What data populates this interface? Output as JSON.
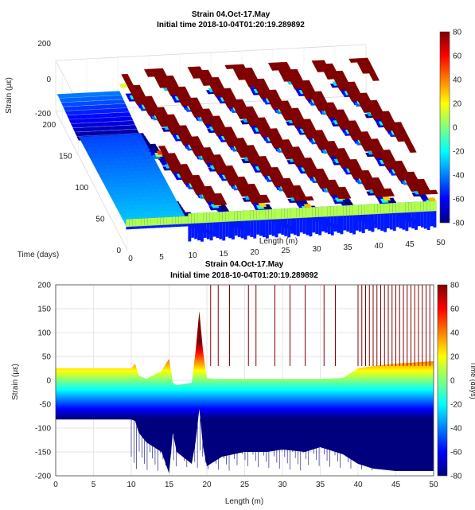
{
  "colors": {
    "colormap": "jet",
    "stops": [
      "#00007f",
      "#0000ff",
      "#007fff",
      "#00ffff",
      "#7fff7f",
      "#ffff00",
      "#ff7f00",
      "#ff0000",
      "#7f0000"
    ]
  },
  "chart_data": [
    {
      "type": "surface",
      "title": "Strain 04.Oct-17.May",
      "subtitle": "Initial time 2018-10-04T01:20:19.289892",
      "xlabel": "Length (m)",
      "ylabel": "Time (days)",
      "zlabel": "Strain (με)",
      "xlim": [
        0,
        50
      ],
      "ylim": [
        0,
        220
      ],
      "zlim": [
        -200,
        200
      ],
      "x_ticks": [
        "0",
        "5",
        "10",
        "15",
        "20",
        "25",
        "30",
        "35",
        "40",
        "45",
        "50"
      ],
      "y_ticks": [
        "0",
        "50",
        "100",
        "150",
        "200"
      ],
      "z_ticks": [
        "200",
        "0",
        "-200"
      ],
      "colorbar_ticks": [
        "80",
        "60",
        "40",
        "20",
        "0",
        "-20",
        "-40",
        "-60",
        "-80"
      ],
      "grid": true,
      "series": [
        {
          "x": [
            0,
            5,
            10,
            12,
            15,
            18,
            20,
            25,
            30,
            35,
            40,
            45,
            50
          ],
          "strain_band_top": [
            -40,
            -40,
            -40,
            -30,
            0,
            80,
            80,
            80,
            80,
            80,
            80,
            80,
            80
          ],
          "strain_band_bottom": [
            -200,
            -200,
            -200,
            -190,
            -180,
            -170,
            -160,
            -160,
            -160,
            -150,
            -140,
            -140,
            -140
          ]
        }
      ]
    },
    {
      "type": "area",
      "title": "Strain 04.Oct-17.May",
      "subtitle": "Initial time 2018-10-04T01:20:19.289892",
      "xlabel": "Length (m)",
      "ylabel": "Strain (με)",
      "colorbar_label": "Time (days)",
      "xlim": [
        0,
        50
      ],
      "ylim": [
        -200,
        200
      ],
      "x_ticks": [
        "0",
        "5",
        "10",
        "15",
        "20",
        "25",
        "30",
        "35",
        "40",
        "45",
        "50"
      ],
      "y_ticks": [
        "200",
        "150",
        "100",
        "50",
        "0",
        "-50",
        "-100",
        "-150",
        "-200"
      ],
      "colorbar_ticks": [
        "80",
        "60",
        "40",
        "20",
        "0",
        "-20",
        "-40",
        "-60",
        "-80"
      ],
      "grid": true,
      "series": [
        {
          "x": [
            0,
            5,
            10,
            10.5,
            11,
            12,
            14,
            15,
            15.5,
            16,
            18,
            18.5,
            19,
            19.5,
            20,
            21,
            22,
            25,
            28,
            30,
            33,
            35,
            38,
            40,
            42,
            45,
            48,
            50
          ],
          "upper": [
            25,
            25,
            25,
            35,
            10,
            3,
            20,
            45,
            -5,
            -10,
            -5,
            60,
            145,
            60,
            5,
            3,
            3,
            3,
            3,
            3,
            3,
            3,
            5,
            25,
            30,
            35,
            38,
            40
          ],
          "lower": [
            -82,
            -82,
            -82,
            -85,
            -110,
            -130,
            -150,
            -195,
            -110,
            -150,
            -175,
            -130,
            -60,
            -140,
            -180,
            -170,
            -160,
            -150,
            -150,
            -145,
            -150,
            -140,
            -155,
            -175,
            -185,
            -190,
            -190,
            -190
          ]
        }
      ],
      "spikes": [
        20.5,
        21.5,
        23,
        25.5,
        26.5,
        29,
        31,
        33,
        35.5,
        37,
        40,
        40.5,
        41,
        41.5,
        42,
        42.5,
        43,
        43.5,
        44,
        44.5,
        45,
        45.5,
        46,
        46.5,
        47,
        47.5,
        48,
        48.5,
        49,
        49.5
      ]
    }
  ]
}
